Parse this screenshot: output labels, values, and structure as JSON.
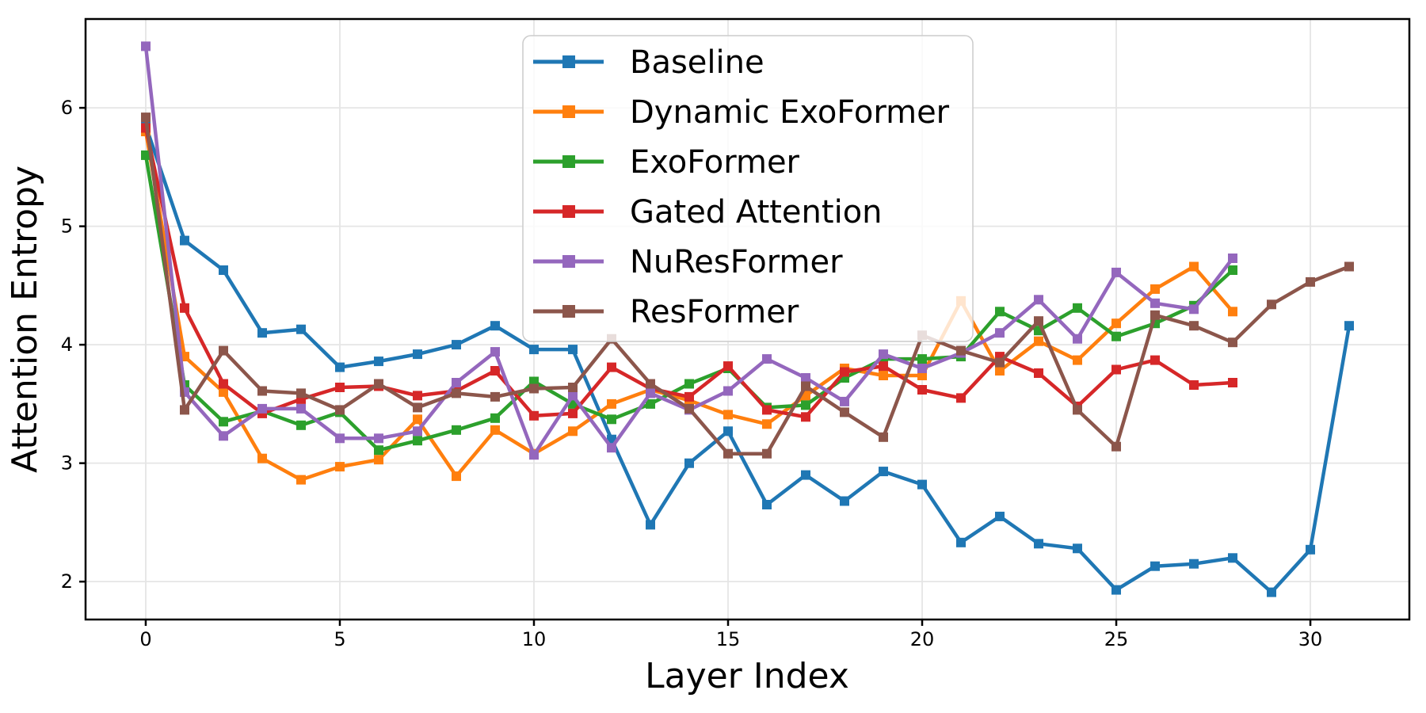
{
  "figure": {
    "background": "#ffffff",
    "plot_background": "#ffffff",
    "grid_color": "#e5e5e5",
    "spine_color": "#000000"
  },
  "chart_data": {
    "type": "line",
    "title": "",
    "xlabel": "Layer Index",
    "ylabel": "Attention Entropy",
    "xlim": [
      -1.55,
      32.55
    ],
    "ylim": [
      1.68,
      6.75
    ],
    "xticks": [
      0,
      5,
      10,
      15,
      20,
      25,
      30
    ],
    "yticks": [
      2,
      3,
      4,
      5,
      6
    ],
    "grid": true,
    "legend_position": "upper center",
    "marker": "square",
    "series": [
      {
        "name": "Baseline",
        "color": "#1f77b4",
        "x": [
          0,
          1,
          2,
          3,
          4,
          5,
          6,
          7,
          8,
          9,
          10,
          11,
          12,
          13,
          14,
          15,
          16,
          17,
          18,
          19,
          20,
          21,
          22,
          23,
          24,
          25,
          26,
          27,
          28,
          29,
          30,
          31
        ],
        "values": [
          5.85,
          4.88,
          4.63,
          4.1,
          4.13,
          3.81,
          3.86,
          3.92,
          4.0,
          4.16,
          3.96,
          3.96,
          3.2,
          2.48,
          3.0,
          3.27,
          2.65,
          2.9,
          2.68,
          2.93,
          2.82,
          2.33,
          2.55,
          2.32,
          2.28,
          1.93,
          2.13,
          2.15,
          2.2,
          1.91,
          2.27,
          4.16
        ]
      },
      {
        "name": "Dynamic ExoFormer",
        "color": "#ff7f0e",
        "x": [
          0,
          1,
          2,
          3,
          4,
          5,
          6,
          7,
          8,
          9,
          10,
          11,
          12,
          13,
          14,
          15,
          16,
          17,
          18,
          19,
          20,
          21,
          22,
          23,
          24,
          25,
          26,
          27,
          28
        ],
        "values": [
          5.8,
          3.9,
          3.6,
          3.04,
          2.86,
          2.97,
          3.03,
          3.37,
          2.89,
          3.28,
          3.08,
          3.27,
          3.5,
          3.62,
          3.53,
          3.41,
          3.33,
          3.57,
          3.8,
          3.74,
          3.74,
          4.37,
          3.78,
          4.03,
          3.87,
          4.18,
          4.47,
          4.66,
          4.28
        ]
      },
      {
        "name": "ExoFormer",
        "color": "#2ca02c",
        "x": [
          0,
          1,
          2,
          3,
          4,
          5,
          6,
          7,
          8,
          9,
          10,
          11,
          12,
          13,
          14,
          15,
          16,
          17,
          18,
          19,
          20,
          21,
          22,
          23,
          24,
          25,
          26,
          27,
          28
        ],
        "values": [
          5.6,
          3.66,
          3.35,
          3.44,
          3.32,
          3.43,
          3.11,
          3.19,
          3.28,
          3.38,
          3.69,
          3.5,
          3.37,
          3.5,
          3.67,
          3.8,
          3.47,
          3.49,
          3.72,
          3.88,
          3.88,
          3.9,
          4.28,
          4.12,
          4.31,
          4.07,
          4.18,
          4.33,
          4.63
        ]
      },
      {
        "name": "Gated Attention",
        "color": "#d62728",
        "x": [
          0,
          1,
          2,
          3,
          4,
          5,
          6,
          7,
          8,
          9,
          10,
          11,
          12,
          13,
          14,
          15,
          16,
          17,
          18,
          19,
          20,
          21,
          22,
          23,
          24,
          25,
          26,
          27,
          28
        ],
        "values": [
          5.83,
          4.31,
          3.67,
          3.42,
          3.54,
          3.64,
          3.65,
          3.57,
          3.61,
          3.78,
          3.4,
          3.42,
          3.81,
          3.63,
          3.56,
          3.82,
          3.45,
          3.39,
          3.77,
          3.82,
          3.62,
          3.55,
          3.9,
          3.76,
          3.48,
          3.79,
          3.87,
          3.66,
          3.68
        ]
      },
      {
        "name": "NuResFormer",
        "color": "#9467bd",
        "x": [
          0,
          1,
          2,
          3,
          4,
          5,
          6,
          7,
          8,
          9,
          10,
          11,
          12,
          13,
          14,
          15,
          16,
          17,
          18,
          19,
          20,
          21,
          22,
          23,
          24,
          25,
          26,
          27,
          28
        ],
        "values": [
          6.52,
          3.6,
          3.23,
          3.46,
          3.46,
          3.21,
          3.21,
          3.27,
          3.68,
          3.94,
          3.07,
          3.57,
          3.13,
          3.59,
          3.45,
          3.61,
          3.88,
          3.72,
          3.52,
          3.92,
          3.8,
          3.93,
          4.1,
          4.38,
          4.05,
          4.61,
          4.35,
          4.3,
          4.73
        ]
      },
      {
        "name": "ResFormer",
        "color": "#8c564b",
        "x": [
          0,
          1,
          2,
          3,
          4,
          5,
          6,
          7,
          8,
          9,
          10,
          11,
          12,
          13,
          14,
          15,
          16,
          17,
          18,
          19,
          20,
          21,
          22,
          23,
          24,
          25,
          26,
          27,
          28,
          29,
          30,
          31
        ],
        "values": [
          5.92,
          3.45,
          3.95,
          3.61,
          3.59,
          3.45,
          3.67,
          3.47,
          3.59,
          3.56,
          3.63,
          3.64,
          4.05,
          3.67,
          3.46,
          3.08,
          3.08,
          3.65,
          3.43,
          3.22,
          4.08,
          3.95,
          3.85,
          4.2,
          3.45,
          3.14,
          4.25,
          4.16,
          4.02,
          4.34,
          4.53,
          4.66
        ]
      }
    ],
    "legend": {
      "fill": "#ffffff",
      "fill_opacity": 0.8,
      "border_color": "#cccccc"
    }
  }
}
